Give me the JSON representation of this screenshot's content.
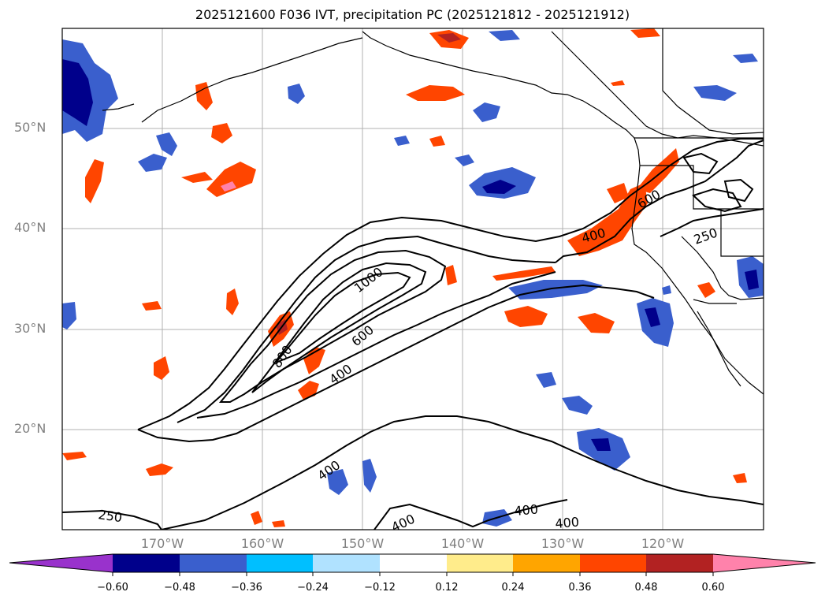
{
  "title": "2025121600 F036 IVT, precipitation PC (2025121812 - 2025121912)",
  "map": {
    "lat_labels": [
      "50°N",
      "40°N",
      "30°N",
      "20°N"
    ],
    "lon_labels": [
      "170°W",
      "160°W",
      "150°W",
      "140°W",
      "130°W",
      "120°W"
    ],
    "contour_labels": [
      "1000",
      "800",
      "600",
      "400",
      "400",
      "600",
      "400",
      "250",
      "250",
      "400",
      "400",
      "400"
    ],
    "colors": {
      "coast": "#000000",
      "grid": "#b0b0b0"
    }
  },
  "colorbar": {
    "tick_labels": [
      "−0.60",
      "−0.48",
      "−0.36",
      "−0.24",
      "−0.12",
      "0.12",
      "0.24",
      "0.36",
      "0.48",
      "0.60"
    ],
    "colors": [
      "#9932cc",
      "#00008b",
      "#3a5fcd",
      "#00bfff",
      "#b0e2ff",
      "#ffffff",
      "#ffec8b",
      "#ffa500",
      "#ff4500",
      "#b22222",
      "#ff82ab"
    ]
  }
}
